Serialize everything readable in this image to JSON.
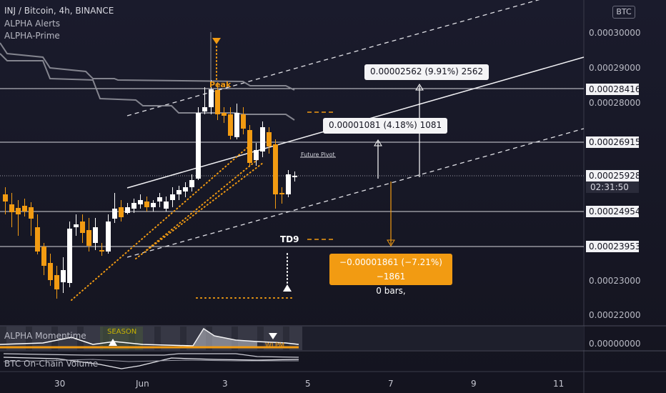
{
  "header": {
    "symbol_line": "INJ / Bitcoin, 4h, BINANCE",
    "indicators": [
      "ALPHA Alerts",
      "ALPHA-Prime"
    ],
    "currency_badge": "BTC"
  },
  "price_axis": {
    "labels": [
      {
        "text": "0.00030000",
        "style": "plain"
      },
      {
        "text": "0.00029000",
        "style": "plain"
      },
      {
        "text": "0.00028416",
        "style": "boxed"
      },
      {
        "text": "0.00028000",
        "style": "plain"
      },
      {
        "text": "0.00026915",
        "style": "boxed"
      },
      {
        "text": "0.00025928",
        "style": "boxed"
      },
      {
        "text": "0.00024954",
        "style": "boxed"
      },
      {
        "text": "0.00023953",
        "style": "boxed"
      },
      {
        "text": "0.00023000",
        "style": "plain"
      },
      {
        "text": "0.00022000",
        "style": "plain"
      },
      {
        "text": "0.00000000",
        "style": "plain"
      }
    ],
    "countdown": "02:31:50"
  },
  "time_axis": {
    "labels": [
      "30",
      "Jun",
      "3",
      "5",
      "7",
      "9",
      "11"
    ]
  },
  "annotations": {
    "peak_label": "Peak",
    "future_pivot": "Future Pivot",
    "td_label": "TD9",
    "range_tip_top": "0.00002562 (9.91%) 2562",
    "range_tip_mid": "0.00001081 (4.18%) 1081",
    "range_tip_down_line1": "−0.00001861 (−7.21%) −1861",
    "range_tip_down_line2": "0 bars,"
  },
  "panes": {
    "momentum_label": "ALPHA Momentime",
    "momentum_overlay": "SEASON",
    "momentum_marker": "WLPM",
    "volume_label": "BTC On-Chain Volume"
  },
  "colors": {
    "bull": "#ffffff",
    "bear": "#f29b12",
    "cloud": "#8f9099",
    "accent": "#f29b12",
    "background": "#161626"
  }
}
